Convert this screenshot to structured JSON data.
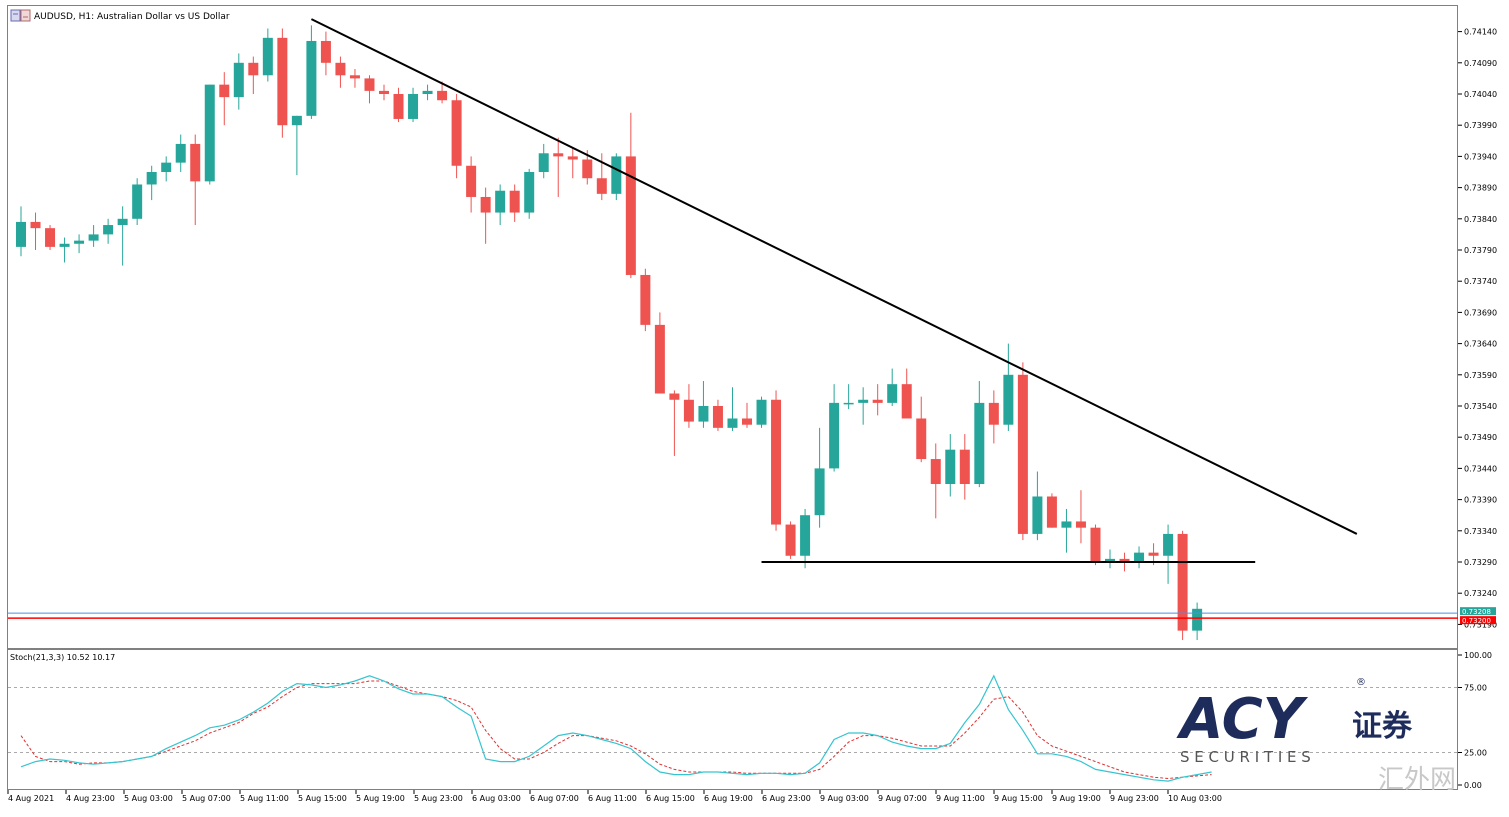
{
  "window": {
    "symbol_title": "AUDUSD, H1:  Australian Dollar vs US Dollar"
  },
  "price_axis": {
    "labels": [
      "0.74140",
      "0.74090",
      "0.74040",
      "0.73990",
      "0.73940",
      "0.73890",
      "0.73840",
      "0.73790",
      "0.73740",
      "0.73690",
      "0.73640",
      "0.73590",
      "0.73540",
      "0.73490",
      "0.73440",
      "0.73390",
      "0.73340",
      "0.73290",
      "0.73240",
      "0.73190"
    ],
    "bid_label": "0.73200",
    "ask_label": "0.73208"
  },
  "time_axis": {
    "labels": [
      "4 Aug 2021",
      "4 Aug 23:00",
      "5 Aug 03:00",
      "5 Aug 07:00",
      "5 Aug 11:00",
      "5 Aug 15:00",
      "5 Aug 19:00",
      "5 Aug 23:00",
      "6 Aug 03:00",
      "6 Aug 07:00",
      "6 Aug 11:00",
      "6 Aug 15:00",
      "6 Aug 19:00",
      "6 Aug 23:00",
      "9 Aug 03:00",
      "9 Aug 07:00",
      "9 Aug 11:00",
      "9 Aug 15:00",
      "9 Aug 19:00",
      "9 Aug 23:00",
      "10 Aug 03:00"
    ]
  },
  "indicator": {
    "title": "Stoch(21,3,3) 10.52 10.17",
    "levels": [
      "100.00",
      "75.00",
      "25.00",
      "0.00"
    ]
  },
  "logo": {
    "brand": "ACY",
    "chinese": "证券",
    "securities": "S E C U R I T I E S",
    "registered": "®"
  },
  "watermark": "汇外网",
  "colors": {
    "bull": "#26a69a",
    "bear": "#ef5350",
    "trendline": "#000000",
    "bid_line": "#ff0000",
    "ask_line": "#4a90e2",
    "stoch_main": "#36c5d0",
    "stoch_signal": "#e03030"
  },
  "chart_data": {
    "type": "candlestick",
    "symbol": "AUDUSD",
    "timeframe": "H1",
    "price_range": [
      0.73165,
      0.74165
    ],
    "series": [
      {
        "ohlc": [
          0.73795,
          0.7386,
          0.7378,
          0.73835
        ]
      },
      {
        "ohlc": [
          0.73835,
          0.7385,
          0.7379,
          0.73825
        ]
      },
      {
        "ohlc": [
          0.73825,
          0.7383,
          0.7379,
          0.73795
        ]
      },
      {
        "ohlc": [
          0.73795,
          0.7381,
          0.7377,
          0.738
        ]
      },
      {
        "ohlc": [
          0.738,
          0.73815,
          0.73785,
          0.73805
        ]
      },
      {
        "ohlc": [
          0.73805,
          0.7383,
          0.73795,
          0.73815
        ]
      },
      {
        "ohlc": [
          0.73815,
          0.7384,
          0.738,
          0.7383
        ]
      },
      {
        "ohlc": [
          0.7383,
          0.7386,
          0.73765,
          0.7384
        ]
      },
      {
        "ohlc": [
          0.7384,
          0.73905,
          0.7383,
          0.73895
        ]
      },
      {
        "ohlc": [
          0.73895,
          0.73925,
          0.7387,
          0.73915
        ]
      },
      {
        "ohlc": [
          0.73915,
          0.7394,
          0.739,
          0.7393
        ]
      },
      {
        "ohlc": [
          0.7393,
          0.73975,
          0.73915,
          0.7396
        ]
      },
      {
        "ohlc": [
          0.7396,
          0.73975,
          0.7383,
          0.739
        ]
      },
      {
        "ohlc": [
          0.739,
          0.74055,
          0.73895,
          0.74055
        ]
      },
      {
        "ohlc": [
          0.74055,
          0.74075,
          0.7399,
          0.74035
        ]
      },
      {
        "ohlc": [
          0.74035,
          0.74105,
          0.74015,
          0.7409
        ]
      },
      {
        "ohlc": [
          0.7409,
          0.741,
          0.7404,
          0.7407
        ]
      },
      {
        "ohlc": [
          0.7407,
          0.74145,
          0.7406,
          0.7413
        ]
      },
      {
        "ohlc": [
          0.7413,
          0.74145,
          0.7397,
          0.7399
        ]
      },
      {
        "ohlc": [
          0.7399,
          0.74005,
          0.7391,
          0.74005
        ]
      },
      {
        "ohlc": [
          0.74005,
          0.7415,
          0.74,
          0.74125
        ]
      },
      {
        "ohlc": [
          0.74125,
          0.7414,
          0.7407,
          0.7409
        ]
      },
      {
        "ohlc": [
          0.7409,
          0.741,
          0.7405,
          0.7407
        ]
      },
      {
        "ohlc": [
          0.7407,
          0.7408,
          0.7405,
          0.74065
        ]
      },
      {
        "ohlc": [
          0.74065,
          0.7407,
          0.74025,
          0.74045
        ]
      },
      {
        "ohlc": [
          0.74045,
          0.74055,
          0.7403,
          0.7404
        ]
      },
      {
        "ohlc": [
          0.7404,
          0.7405,
          0.73995,
          0.74
        ]
      },
      {
        "ohlc": [
          0.74,
          0.7405,
          0.73995,
          0.7404
        ]
      },
      {
        "ohlc": [
          0.7404,
          0.74055,
          0.7403,
          0.74045
        ]
      },
      {
        "ohlc": [
          0.74045,
          0.7406,
          0.74025,
          0.7403
        ]
      },
      {
        "ohlc": [
          0.7403,
          0.7404,
          0.73905,
          0.73925
        ]
      },
      {
        "ohlc": [
          0.73925,
          0.7394,
          0.7385,
          0.73875
        ]
      },
      {
        "ohlc": [
          0.73875,
          0.7389,
          0.738,
          0.7385
        ]
      },
      {
        "ohlc": [
          0.7385,
          0.73895,
          0.7383,
          0.73885
        ]
      },
      {
        "ohlc": [
          0.73885,
          0.73895,
          0.73835,
          0.7385
        ]
      },
      {
        "ohlc": [
          0.7385,
          0.7392,
          0.7384,
          0.73915
        ]
      },
      {
        "ohlc": [
          0.73915,
          0.7396,
          0.73905,
          0.73945
        ]
      },
      {
        "ohlc": [
          0.73945,
          0.7397,
          0.73875,
          0.7394
        ]
      },
      {
        "ohlc": [
          0.7394,
          0.73955,
          0.73905,
          0.73935
        ]
      },
      {
        "ohlc": [
          0.73935,
          0.7395,
          0.73895,
          0.73905
        ]
      },
      {
        "ohlc": [
          0.73905,
          0.73945,
          0.7387,
          0.7388
        ]
      },
      {
        "ohlc": [
          0.7388,
          0.73945,
          0.7387,
          0.7394
        ]
      },
      {
        "ohlc": [
          0.7394,
          0.7401,
          0.73745,
          0.7375
        ]
      },
      {
        "ohlc": [
          0.7375,
          0.7376,
          0.7366,
          0.7367
        ]
      },
      {
        "ohlc": [
          0.7367,
          0.7369,
          0.7356,
          0.7356
        ]
      },
      {
        "ohlc": [
          0.7356,
          0.73565,
          0.7346,
          0.7355
        ]
      },
      {
        "ohlc": [
          0.7355,
          0.73575,
          0.73505,
          0.73515
        ]
      },
      {
        "ohlc": [
          0.73515,
          0.7358,
          0.73505,
          0.7354
        ]
      },
      {
        "ohlc": [
          0.7354,
          0.7355,
          0.735,
          0.73505
        ]
      },
      {
        "ohlc": [
          0.73505,
          0.7357,
          0.735,
          0.7352
        ]
      },
      {
        "ohlc": [
          0.7352,
          0.73545,
          0.73505,
          0.7351
        ]
      },
      {
        "ohlc": [
          0.7351,
          0.73555,
          0.73505,
          0.7355
        ]
      },
      {
        "ohlc": [
          0.7355,
          0.73565,
          0.7334,
          0.7335
        ]
      },
      {
        "ohlc": [
          0.7335,
          0.73355,
          0.73295,
          0.733
        ]
      },
      {
        "ohlc": [
          0.733,
          0.73375,
          0.7328,
          0.73365
        ]
      },
      {
        "ohlc": [
          0.73365,
          0.73505,
          0.73345,
          0.7344
        ]
      },
      {
        "ohlc": [
          0.7344,
          0.73575,
          0.73435,
          0.73545
        ]
      },
      {
        "ohlc": [
          0.73545,
          0.73575,
          0.73535,
          0.73545
        ]
      },
      {
        "ohlc": [
          0.73545,
          0.7357,
          0.7351,
          0.7355
        ]
      },
      {
        "ohlc": [
          0.7355,
          0.73575,
          0.73525,
          0.73545
        ]
      },
      {
        "ohlc": [
          0.73545,
          0.736,
          0.7354,
          0.73575
        ]
      },
      {
        "ohlc": [
          0.73575,
          0.736,
          0.7352,
          0.7352
        ]
      },
      {
        "ohlc": [
          0.7352,
          0.73555,
          0.7345,
          0.73455
        ]
      },
      {
        "ohlc": [
          0.73455,
          0.7348,
          0.7336,
          0.73415
        ]
      },
      {
        "ohlc": [
          0.73415,
          0.73495,
          0.73395,
          0.7347
        ]
      },
      {
        "ohlc": [
          0.7347,
          0.73495,
          0.7339,
          0.73415
        ]
      },
      {
        "ohlc": [
          0.73415,
          0.7358,
          0.7341,
          0.73545
        ]
      },
      {
        "ohlc": [
          0.73545,
          0.73565,
          0.7348,
          0.7351
        ]
      },
      {
        "ohlc": [
          0.7351,
          0.7364,
          0.735,
          0.7359
        ]
      },
      {
        "ohlc": [
          0.7359,
          0.7361,
          0.73325,
          0.73335
        ]
      },
      {
        "ohlc": [
          0.73335,
          0.73435,
          0.73325,
          0.73395
        ]
      },
      {
        "ohlc": [
          0.73395,
          0.734,
          0.73345,
          0.73345
        ]
      },
      {
        "ohlc": [
          0.73345,
          0.73375,
          0.73305,
          0.73355
        ]
      },
      {
        "ohlc": [
          0.73355,
          0.73405,
          0.7332,
          0.73345
        ]
      },
      {
        "ohlc": [
          0.73345,
          0.7335,
          0.73285,
          0.7329
        ]
      },
      {
        "ohlc": [
          0.7329,
          0.7331,
          0.7328,
          0.73295
        ]
      },
      {
        "ohlc": [
          0.73295,
          0.73305,
          0.73275,
          0.7329
        ]
      },
      {
        "ohlc": [
          0.7329,
          0.73315,
          0.7328,
          0.73305
        ]
      },
      {
        "ohlc": [
          0.73305,
          0.7332,
          0.73285,
          0.733
        ]
      },
      {
        "ohlc": [
          0.733,
          0.7335,
          0.73255,
          0.73335
        ]
      },
      {
        "ohlc": [
          0.73335,
          0.7334,
          0.73165,
          0.7318
        ]
      },
      {
        "ohlc": [
          0.7318,
          0.73225,
          0.73165,
          0.73215
        ]
      }
    ],
    "trendline": {
      "from": {
        "bar": 20,
        "price": 0.7416
      },
      "to": {
        "bar": 92,
        "price": 0.73335
      }
    },
    "support_line": {
      "from": {
        "bar": 51,
        "price": 0.7329
      },
      "to": {
        "bar": 85,
        "price": 0.7329
      }
    },
    "current_bid": 0.732,
    "current_ask": 0.73208,
    "stochastic": {
      "params": "21,3,3",
      "main_last": 10.52,
      "signal_last": 10.17,
      "range": [
        0,
        100
      ],
      "levels": [
        75,
        25
      ],
      "main": [
        14,
        18,
        20,
        19,
        17,
        16,
        17,
        18,
        20,
        22,
        28,
        33,
        38,
        44,
        46,
        50,
        56,
        63,
        72,
        78,
        77,
        75,
        77,
        80,
        84,
        80,
        74,
        70,
        70,
        68,
        60,
        53,
        20,
        18,
        18,
        22,
        30,
        38,
        40,
        38,
        35,
        32,
        28,
        18,
        10,
        8,
        8,
        10,
        10,
        9,
        8,
        9,
        9,
        8,
        9,
        17,
        35,
        40,
        40,
        38,
        33,
        30,
        28,
        28,
        32,
        48,
        62,
        84,
        58,
        42,
        24,
        24,
        22,
        18,
        12,
        10,
        8,
        6,
        4,
        3,
        6,
        8,
        10
      ],
      "signal": [
        38,
        22,
        18,
        18,
        16,
        17,
        17,
        18,
        20,
        22,
        26,
        30,
        34,
        40,
        44,
        48,
        55,
        60,
        68,
        75,
        78,
        78,
        78,
        78,
        80,
        80,
        76,
        72,
        70,
        68,
        65,
        60,
        42,
        28,
        20,
        20,
        25,
        32,
        38,
        38,
        36,
        34,
        30,
        24,
        16,
        12,
        10,
        10,
        10,
        10,
        9,
        9,
        9,
        9,
        9,
        12,
        22,
        33,
        38,
        38,
        36,
        33,
        30,
        30,
        30,
        40,
        52,
        66,
        68,
        56,
        38,
        30,
        26,
        22,
        18,
        14,
        10,
        8,
        6,
        5,
        6,
        7,
        8
      ]
    }
  }
}
